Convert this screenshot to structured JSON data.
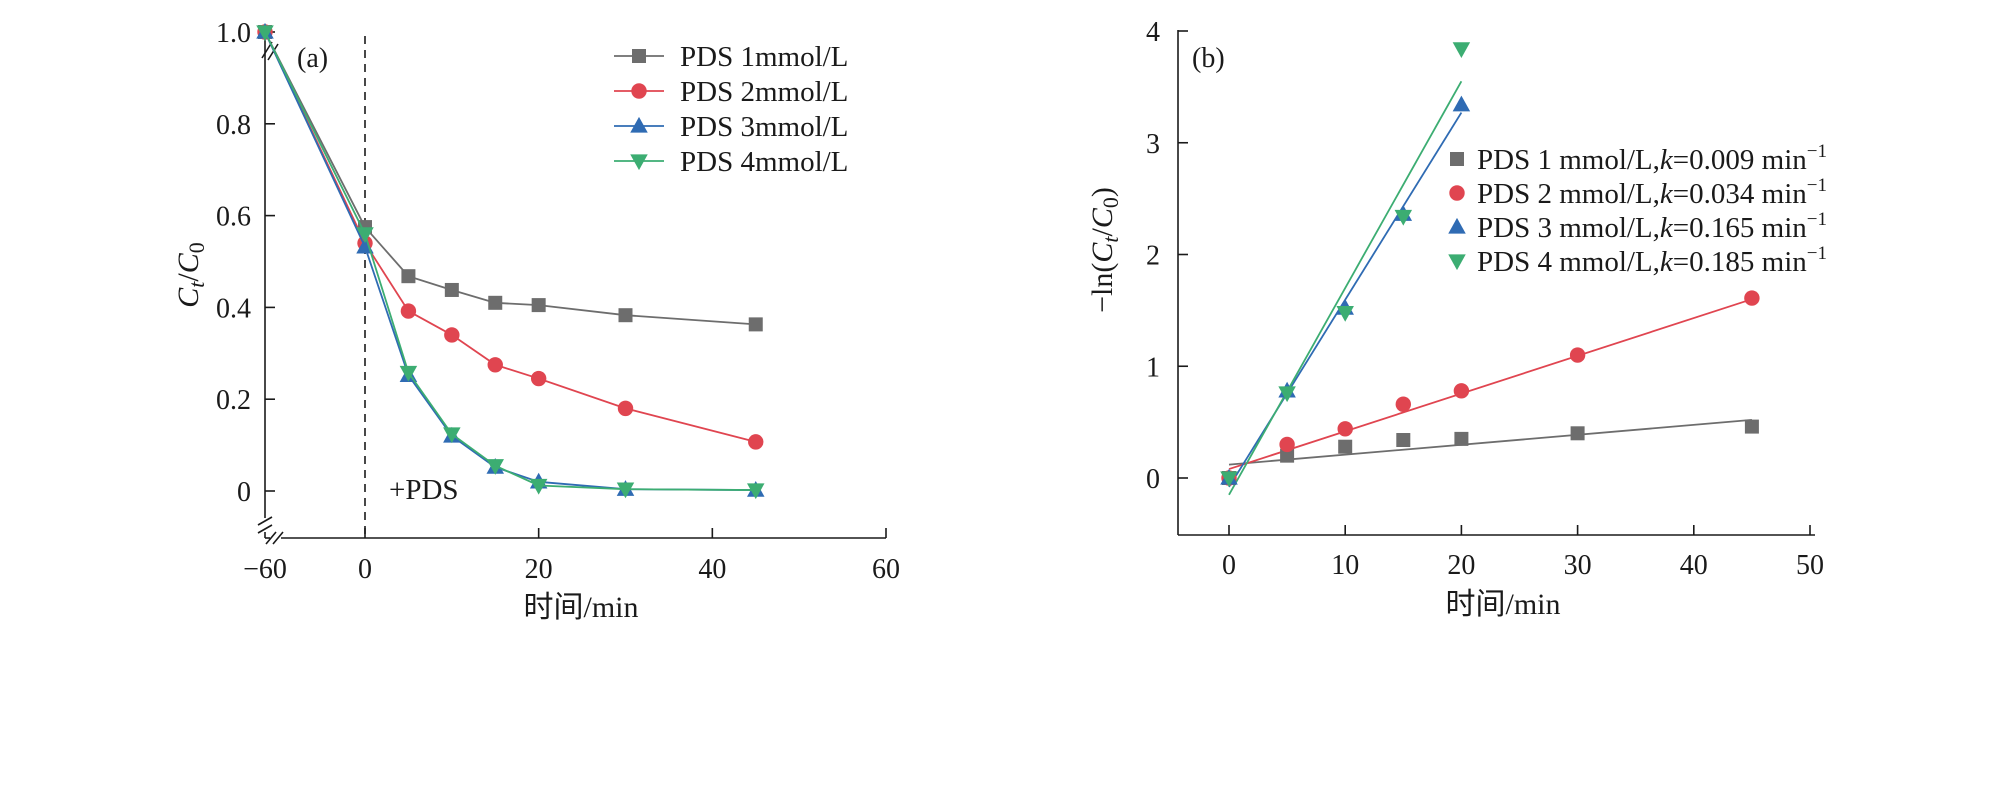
{
  "chart_data": [
    {
      "type": "line",
      "panel_label": "(a)",
      "xlabel": "时间/min",
      "ylabel": "C_t/C_0",
      "xlim": [
        -60,
        60
      ],
      "ylim": [
        -0.1,
        1.0
      ],
      "xticks": [
        -60,
        0,
        20,
        40,
        60
      ],
      "xtick_labels": [
        "−60",
        "0",
        "20",
        "40",
        "60"
      ],
      "yticks": [
        0,
        0.2,
        0.4,
        0.6,
        0.8,
        1.0
      ],
      "ytick_labels": [
        "0",
        "0.2",
        "0.4",
        "0.6",
        "0.8",
        "1.0"
      ],
      "axis_break": "after -60 on the x-axis and below the first y tick",
      "annotation": {
        "text": "+PDS",
        "x": 0,
        "line": "dashed vertical line at x = 0"
      },
      "legend_position": "top-right",
      "series": [
        {
          "name": "PDS 1mmol/L",
          "color": "#6d6d6d",
          "marker": "square",
          "x": [
            -60,
            0,
            5,
            10,
            15,
            20,
            30,
            45
          ],
          "y": [
            1.0,
            0.575,
            0.468,
            0.438,
            0.41,
            0.405,
            0.383,
            0.363
          ]
        },
        {
          "name": "PDS 2mmol/L",
          "color": "#e04550",
          "marker": "circle",
          "x": [
            -60,
            0,
            5,
            10,
            15,
            20,
            30,
            45
          ],
          "y": [
            1.0,
            0.54,
            0.392,
            0.34,
            0.275,
            0.245,
            0.18,
            0.107
          ]
        },
        {
          "name": "PDS 3mmol/L",
          "color": "#2f6bb3",
          "marker": "triangle-up",
          "x": [
            -60,
            0,
            5,
            10,
            15,
            20,
            30,
            45
          ],
          "y": [
            1.0,
            0.532,
            0.252,
            0.12,
            0.052,
            0.02,
            0.004,
            0.002
          ]
        },
        {
          "name": "PDS 4mmol/L",
          "color": "#3cad72",
          "marker": "triangle-down",
          "x": [
            -60,
            0,
            5,
            10,
            15,
            20,
            30,
            45
          ],
          "y": [
            1.0,
            0.56,
            0.258,
            0.124,
            0.055,
            0.012,
            0.004,
            0.002
          ]
        }
      ]
    },
    {
      "type": "scatter",
      "panel_label": "(b)",
      "xlabel": "时间/min",
      "ylabel": "−ln(C_t/C_0)",
      "xlim": [
        -5,
        50
      ],
      "ylim": [
        -0.5,
        4
      ],
      "xticks": [
        0,
        10,
        20,
        30,
        40,
        50
      ],
      "xtick_labels": [
        "0",
        "10",
        "20",
        "30",
        "40",
        "50"
      ],
      "yticks": [
        0,
        1,
        2,
        3,
        4
      ],
      "ytick_labels": [
        "0",
        "1",
        "2",
        "3",
        "4"
      ],
      "legend_position": "right",
      "series": [
        {
          "name": "PDS 1 mmol/L,",
          "k_text": "k",
          "rate": "=0.009 min",
          "unit_exp": "−1",
          "color": "#6d6d6d",
          "marker": "square",
          "x": [
            0,
            5,
            10,
            15,
            20,
            30,
            45
          ],
          "y": [
            0.0,
            0.2,
            0.28,
            0.34,
            0.35,
            0.4,
            0.46
          ],
          "fit": {
            "x": [
              0,
              45
            ],
            "y": [
              0.12,
              0.52
            ]
          }
        },
        {
          "name": "PDS 2 mmol/L,",
          "k_text": "k",
          "rate": "=0.034 min",
          "unit_exp": "−1",
          "color": "#e04550",
          "marker": "circle",
          "x": [
            0,
            5,
            10,
            15,
            20,
            30,
            45
          ],
          "y": [
            0.0,
            0.3,
            0.44,
            0.66,
            0.78,
            1.1,
            1.61
          ],
          "fit": {
            "x": [
              0,
              45
            ],
            "y": [
              0.08,
              1.6
            ]
          }
        },
        {
          "name": "PDS 3 mmol/L,",
          "k_text": "k",
          "rate": "=0.165 min",
          "unit_exp": "−1",
          "color": "#2f6bb3",
          "marker": "triangle-up",
          "x": [
            0,
            5,
            10,
            15,
            20
          ],
          "y": [
            0.0,
            0.78,
            1.52,
            2.36,
            3.34
          ],
          "fit": {
            "x": [
              0,
              20
            ],
            "y": [
              -0.08,
              3.27
            ]
          }
        },
        {
          "name": "PDS 4 mmol/L,",
          "k_text": "k",
          "rate": "=0.185 min",
          "unit_exp": "−1",
          "color": "#3cad72",
          "marker": "triangle-down",
          "x": [
            0,
            5,
            10,
            15,
            20
          ],
          "y": [
            0.0,
            0.76,
            1.48,
            2.34,
            3.84
          ],
          "fit": {
            "x": [
              0,
              20
            ],
            "y": [
              -0.15,
              3.55
            ]
          }
        }
      ]
    }
  ]
}
